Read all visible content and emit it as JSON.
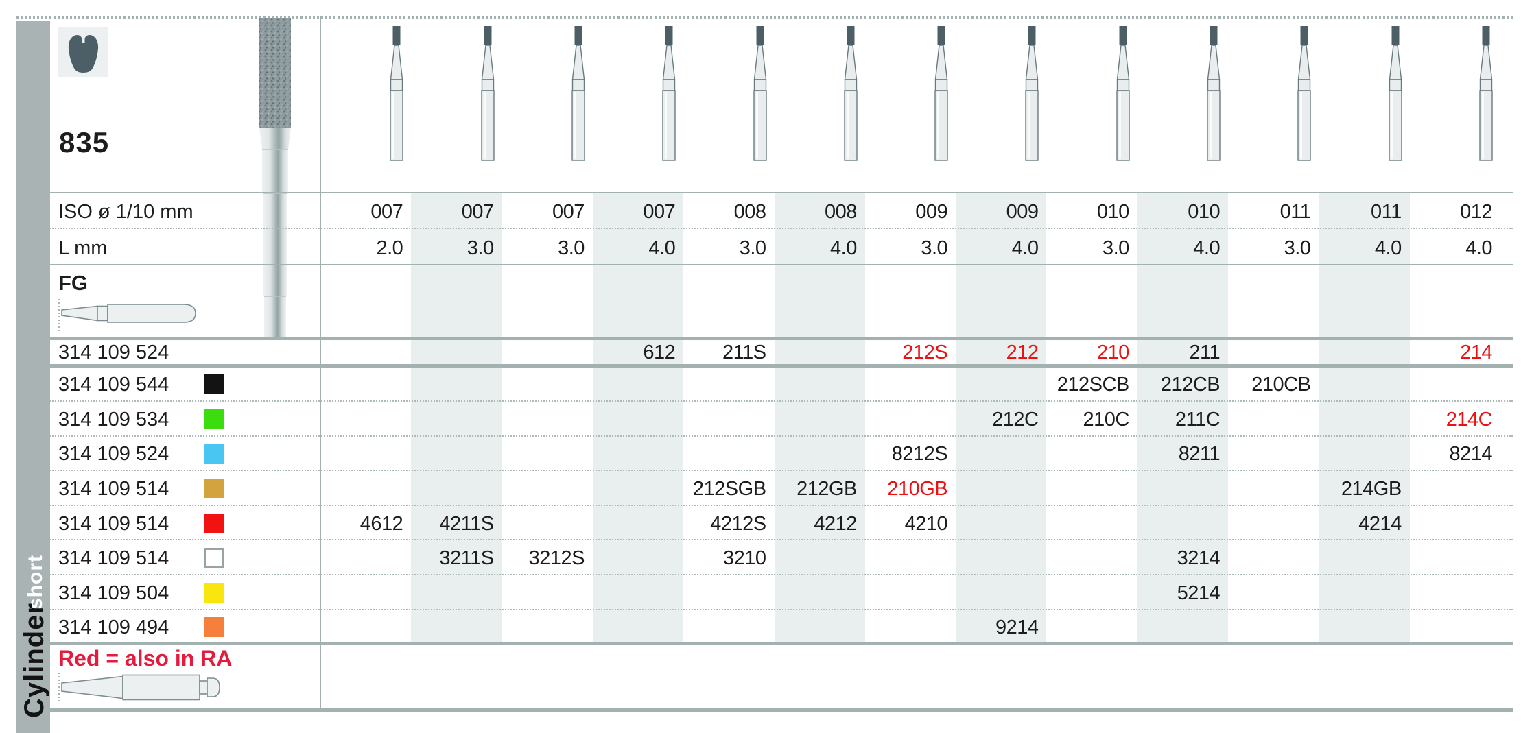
{
  "page": {
    "shape_number": "835"
  },
  "sidebar": {
    "category_label": "Cylinder",
    "variant_label": "short",
    "bg_color": "#a9b3b3"
  },
  "header": {
    "iso_label": "ISO ø 1/10 mm",
    "length_label": "L mm",
    "shank_label": "FG"
  },
  "legend": {
    "text": "Red = also in RA",
    "color": "#e61a3c"
  },
  "icons": {
    "profile": "tooth-crown-cross-section-icon",
    "large_bur": "diamond-bur-large-icon",
    "column_bur": "diamond-bur-icon",
    "fg_shank": "fg-shank-bur-icon",
    "ra_shank": "ra-shank-bur-icon"
  },
  "colors": {
    "band": "#e9eeee",
    "line": "#a3b1b1",
    "value_red": "#ee1111",
    "text": "#1c1c1c",
    "bur_tip": "#4d5f66"
  },
  "columns": [
    {
      "iso": "007",
      "length_mm": "2.0"
    },
    {
      "iso": "007",
      "length_mm": "3.0"
    },
    {
      "iso": "007",
      "length_mm": "3.0"
    },
    {
      "iso": "007",
      "length_mm": "4.0"
    },
    {
      "iso": "008",
      "length_mm": "3.0"
    },
    {
      "iso": "008",
      "length_mm": "4.0"
    },
    {
      "iso": "009",
      "length_mm": "3.0"
    },
    {
      "iso": "009",
      "length_mm": "4.0"
    },
    {
      "iso": "010",
      "length_mm": "3.0"
    },
    {
      "iso": "010",
      "length_mm": "4.0"
    },
    {
      "iso": "011",
      "length_mm": "3.0"
    },
    {
      "iso": "011",
      "length_mm": "4.0"
    },
    {
      "iso": "012",
      "length_mm": "4.0"
    }
  ],
  "rows": [
    {
      "code": "314 109 524",
      "grit_chip": null,
      "cells": [
        {
          "col": 4,
          "value": "612"
        },
        {
          "col": 5,
          "value": "211S"
        },
        {
          "col": 7,
          "value": "212S",
          "red": true
        },
        {
          "col": 8,
          "value": "212",
          "red": true
        },
        {
          "col": 9,
          "value": "210",
          "red": true
        },
        {
          "col": 10,
          "value": "211"
        },
        {
          "col": 13,
          "value": "214",
          "red": true
        }
      ]
    },
    {
      "code": "314 109 544",
      "grit_chip": {
        "name": "black",
        "hex": "#131313"
      },
      "cells": [
        {
          "col": 9,
          "value": "212SCB"
        },
        {
          "col": 10,
          "value": "212CB"
        },
        {
          "col": 11,
          "value": "210CB"
        }
      ]
    },
    {
      "code": "314 109 534",
      "grit_chip": {
        "name": "green",
        "hex": "#3bdd0f"
      },
      "cells": [
        {
          "col": 8,
          "value": "212C"
        },
        {
          "col": 9,
          "value": "210C"
        },
        {
          "col": 10,
          "value": "211C"
        },
        {
          "col": 13,
          "value": "214C",
          "red": true
        }
      ]
    },
    {
      "code": "314 109 524",
      "grit_chip": {
        "name": "blue",
        "hex": "#49c6f2"
      },
      "cells": [
        {
          "col": 7,
          "value": "8212S"
        },
        {
          "col": 10,
          "value": "8211"
        },
        {
          "col": 13,
          "value": "8214"
        }
      ]
    },
    {
      "code": "314 109 514",
      "grit_chip": {
        "name": "gold",
        "hex": "#d2a33e"
      },
      "cells": [
        {
          "col": 5,
          "value": "212SGB"
        },
        {
          "col": 6,
          "value": "212GB"
        },
        {
          "col": 7,
          "value": "210GB",
          "red": true
        },
        {
          "col": 12,
          "value": "214GB"
        }
      ]
    },
    {
      "code": "314 109 514",
      "grit_chip": {
        "name": "red",
        "hex": "#f21212"
      },
      "cells": [
        {
          "col": 1,
          "value": "4612"
        },
        {
          "col": 2,
          "value": "4211S"
        },
        {
          "col": 5,
          "value": "4212S"
        },
        {
          "col": 6,
          "value": "4212"
        },
        {
          "col": 7,
          "value": "4210"
        },
        {
          "col": 12,
          "value": "4214"
        }
      ]
    },
    {
      "code": "314 109 514",
      "grit_chip": {
        "name": "white",
        "hex": "#ffffff",
        "border": "#98a3a4"
      },
      "cells": [
        {
          "col": 2,
          "value": "3211S"
        },
        {
          "col": 3,
          "value": "3212S"
        },
        {
          "col": 5,
          "value": "3210"
        },
        {
          "col": 10,
          "value": "3214"
        }
      ]
    },
    {
      "code": "314 109 504",
      "grit_chip": {
        "name": "yellow",
        "hex": "#f9e60e"
      },
      "cells": [
        {
          "col": 10,
          "value": "5214"
        }
      ]
    },
    {
      "code": "314 109 494",
      "grit_chip": {
        "name": "orange",
        "hex": "#f57f3b"
      },
      "cells": [
        {
          "col": 8,
          "value": "9214"
        }
      ]
    }
  ]
}
